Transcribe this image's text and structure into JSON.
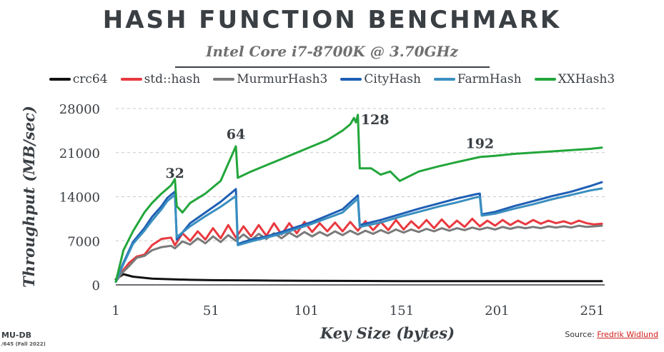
{
  "title": "HASH FUNCTION BENCHMARK",
  "subtitle": "Intel Core i7-8700K @ 3.70GHz",
  "footer": {
    "line1": "MU-DB",
    "line2": "/645 (Fall 2022)"
  },
  "source": {
    "label": "Source: ",
    "link": "Fredrik Widlund"
  },
  "chart_data": {
    "type": "line",
    "xlabel": "Key Size (bytes)",
    "ylabel": "Throughput (MB/sec)",
    "xlim": [
      1,
      256
    ],
    "ylim": [
      0,
      28000
    ],
    "xticks": [
      1,
      51,
      101,
      151,
      201,
      251
    ],
    "yticks": [
      0,
      7000,
      14000,
      21000,
      28000
    ],
    "grid": "horizontal dashed",
    "legend_position": "top",
    "annotations": [
      {
        "text": "32",
        "x": 32,
        "y": 17000
      },
      {
        "text": "64",
        "x": 64,
        "y": 23200
      },
      {
        "text": "128",
        "x": 128,
        "y": 25500
      },
      {
        "text": "192",
        "x": 192,
        "y": 21700
      }
    ],
    "series": [
      {
        "name": "crc64",
        "color": "#111111",
        "x": [
          1,
          5,
          10,
          20,
          30,
          40,
          51,
          75,
          101,
          151,
          201,
          256
        ],
        "y": [
          900,
          1700,
          1300,
          1000,
          900,
          800,
          750,
          700,
          650,
          600,
          600,
          600
        ]
      },
      {
        "name": "std::hash",
        "color": "#e8393f",
        "x": [
          1,
          4,
          8,
          12,
          16,
          20,
          25,
          30,
          32,
          36,
          40,
          44,
          48,
          52,
          56,
          60,
          64,
          68,
          72,
          76,
          80,
          84,
          88,
          92,
          96,
          100,
          104,
          108,
          112,
          116,
          120,
          124,
          128,
          132,
          136,
          140,
          144,
          148,
          152,
          156,
          160,
          164,
          168,
          172,
          176,
          180,
          184,
          188,
          192,
          196,
          200,
          204,
          208,
          212,
          216,
          220,
          224,
          228,
          232,
          236,
          240,
          244,
          248,
          252,
          256
        ],
        "y": [
          500,
          2000,
          3500,
          4500,
          4800,
          6300,
          7300,
          7500,
          6300,
          8200,
          7000,
          8500,
          7200,
          9000,
          7400,
          9500,
          7500,
          9300,
          7700,
          9500,
          7800,
          9800,
          8000,
          9800,
          8200,
          10000,
          8400,
          9800,
          8500,
          9900,
          8500,
          10000,
          8600,
          10100,
          8700,
          10000,
          8700,
          10300,
          8800,
          10100,
          9000,
          10300,
          9000,
          10400,
          9100,
          10200,
          9200,
          10500,
          9300,
          10200,
          9400,
          10300,
          9500,
          10200,
          9600,
          10300,
          9700,
          10200,
          9800,
          10100,
          9700,
          10200,
          9800,
          9600,
          9700
        ]
      },
      {
        "name": "MurmurHash3",
        "color": "#7a7a7a",
        "x": [
          1,
          4,
          8,
          12,
          16,
          20,
          25,
          30,
          32,
          36,
          40,
          44,
          48,
          52,
          56,
          60,
          64,
          68,
          72,
          76,
          80,
          84,
          88,
          92,
          96,
          100,
          104,
          108,
          112,
          116,
          120,
          124,
          128,
          132,
          136,
          140,
          144,
          148,
          152,
          156,
          160,
          164,
          168,
          172,
          176,
          180,
          184,
          188,
          192,
          196,
          200,
          204,
          208,
          212,
          216,
          220,
          224,
          228,
          232,
          236,
          240,
          244,
          248,
          252,
          256
        ],
        "y": [
          500,
          1800,
          3000,
          4300,
          4600,
          5500,
          6000,
          6200,
          5800,
          6900,
          6400,
          7400,
          6600,
          7700,
          6800,
          7900,
          7000,
          8000,
          7100,
          8100,
          7300,
          8200,
          7400,
          8300,
          7600,
          8400,
          7700,
          8400,
          7800,
          8500,
          7900,
          8600,
          8000,
          8600,
          8100,
          8700,
          8200,
          8800,
          8300,
          8800,
          8400,
          8900,
          8500,
          9000,
          8600,
          9000,
          8700,
          9100,
          8800,
          9100,
          8800,
          9200,
          8900,
          9200,
          9000,
          9200,
          9000,
          9300,
          9100,
          9300,
          9100,
          9400,
          9200,
          9300,
          9400
        ]
      },
      {
        "name": "CityHash",
        "color": "#1f5fb4",
        "x": [
          1,
          5,
          10,
          16,
          20,
          25,
          28,
          32,
          33,
          40,
          48,
          56,
          64,
          65,
          72,
          80,
          88,
          96,
          104,
          112,
          120,
          128,
          129,
          140,
          150,
          160,
          170,
          180,
          190,
          192,
          193,
          200,
          210,
          220,
          230,
          240,
          250,
          256
        ],
        "y": [
          500,
          3500,
          6800,
          9000,
          10800,
          12500,
          13800,
          14800,
          7200,
          9800,
          11500,
          13200,
          15200,
          6500,
          7200,
          7700,
          8400,
          9200,
          10000,
          11000,
          12000,
          14200,
          9500,
          10300,
          11200,
          12100,
          12900,
          13700,
          14400,
          14500,
          11200,
          11600,
          12500,
          13300,
          14100,
          14800,
          15700,
          16300
        ]
      },
      {
        "name": "FarmHash",
        "color": "#3a8fc0",
        "x": [
          1,
          5,
          10,
          16,
          20,
          25,
          28,
          32,
          33,
          40,
          48,
          56,
          64,
          65,
          72,
          80,
          88,
          96,
          104,
          112,
          120,
          128,
          129,
          140,
          150,
          160,
          170,
          180,
          190,
          192,
          193,
          200,
          210,
          220,
          230,
          240,
          250,
          256
        ],
        "y": [
          500,
          3300,
          6500,
          8600,
          10200,
          12000,
          13300,
          14300,
          7600,
          9300,
          10900,
          12400,
          14100,
          6300,
          6900,
          7500,
          8100,
          8900,
          9700,
          10600,
          11500,
          13700,
          9200,
          9900,
          10800,
          11600,
          12400,
          13100,
          13900,
          14000,
          11000,
          11300,
          12100,
          12800,
          13600,
          14300,
          15000,
          15300
        ]
      },
      {
        "name": "XXHash3",
        "color": "#22a63b",
        "x": [
          1,
          5,
          10,
          16,
          20,
          25,
          30,
          32,
          33,
          36,
          40,
          48,
          56,
          64,
          65,
          72,
          80,
          88,
          96,
          104,
          112,
          120,
          124,
          126,
          127,
          128,
          129,
          135,
          140,
          145,
          150,
          160,
          170,
          180,
          192,
          200,
          210,
          220,
          230,
          240,
          250,
          256
        ],
        "y": [
          500,
          5500,
          8500,
          11500,
          13000,
          14500,
          15800,
          16800,
          12500,
          11500,
          13000,
          14500,
          16500,
          22000,
          17000,
          18000,
          19000,
          20000,
          21000,
          22000,
          23000,
          24500,
          25500,
          26500,
          25800,
          27000,
          18500,
          18500,
          17500,
          18000,
          16500,
          18000,
          18800,
          19500,
          20300,
          20500,
          20800,
          21000,
          21200,
          21400,
          21600,
          21800
        ]
      }
    ]
  }
}
